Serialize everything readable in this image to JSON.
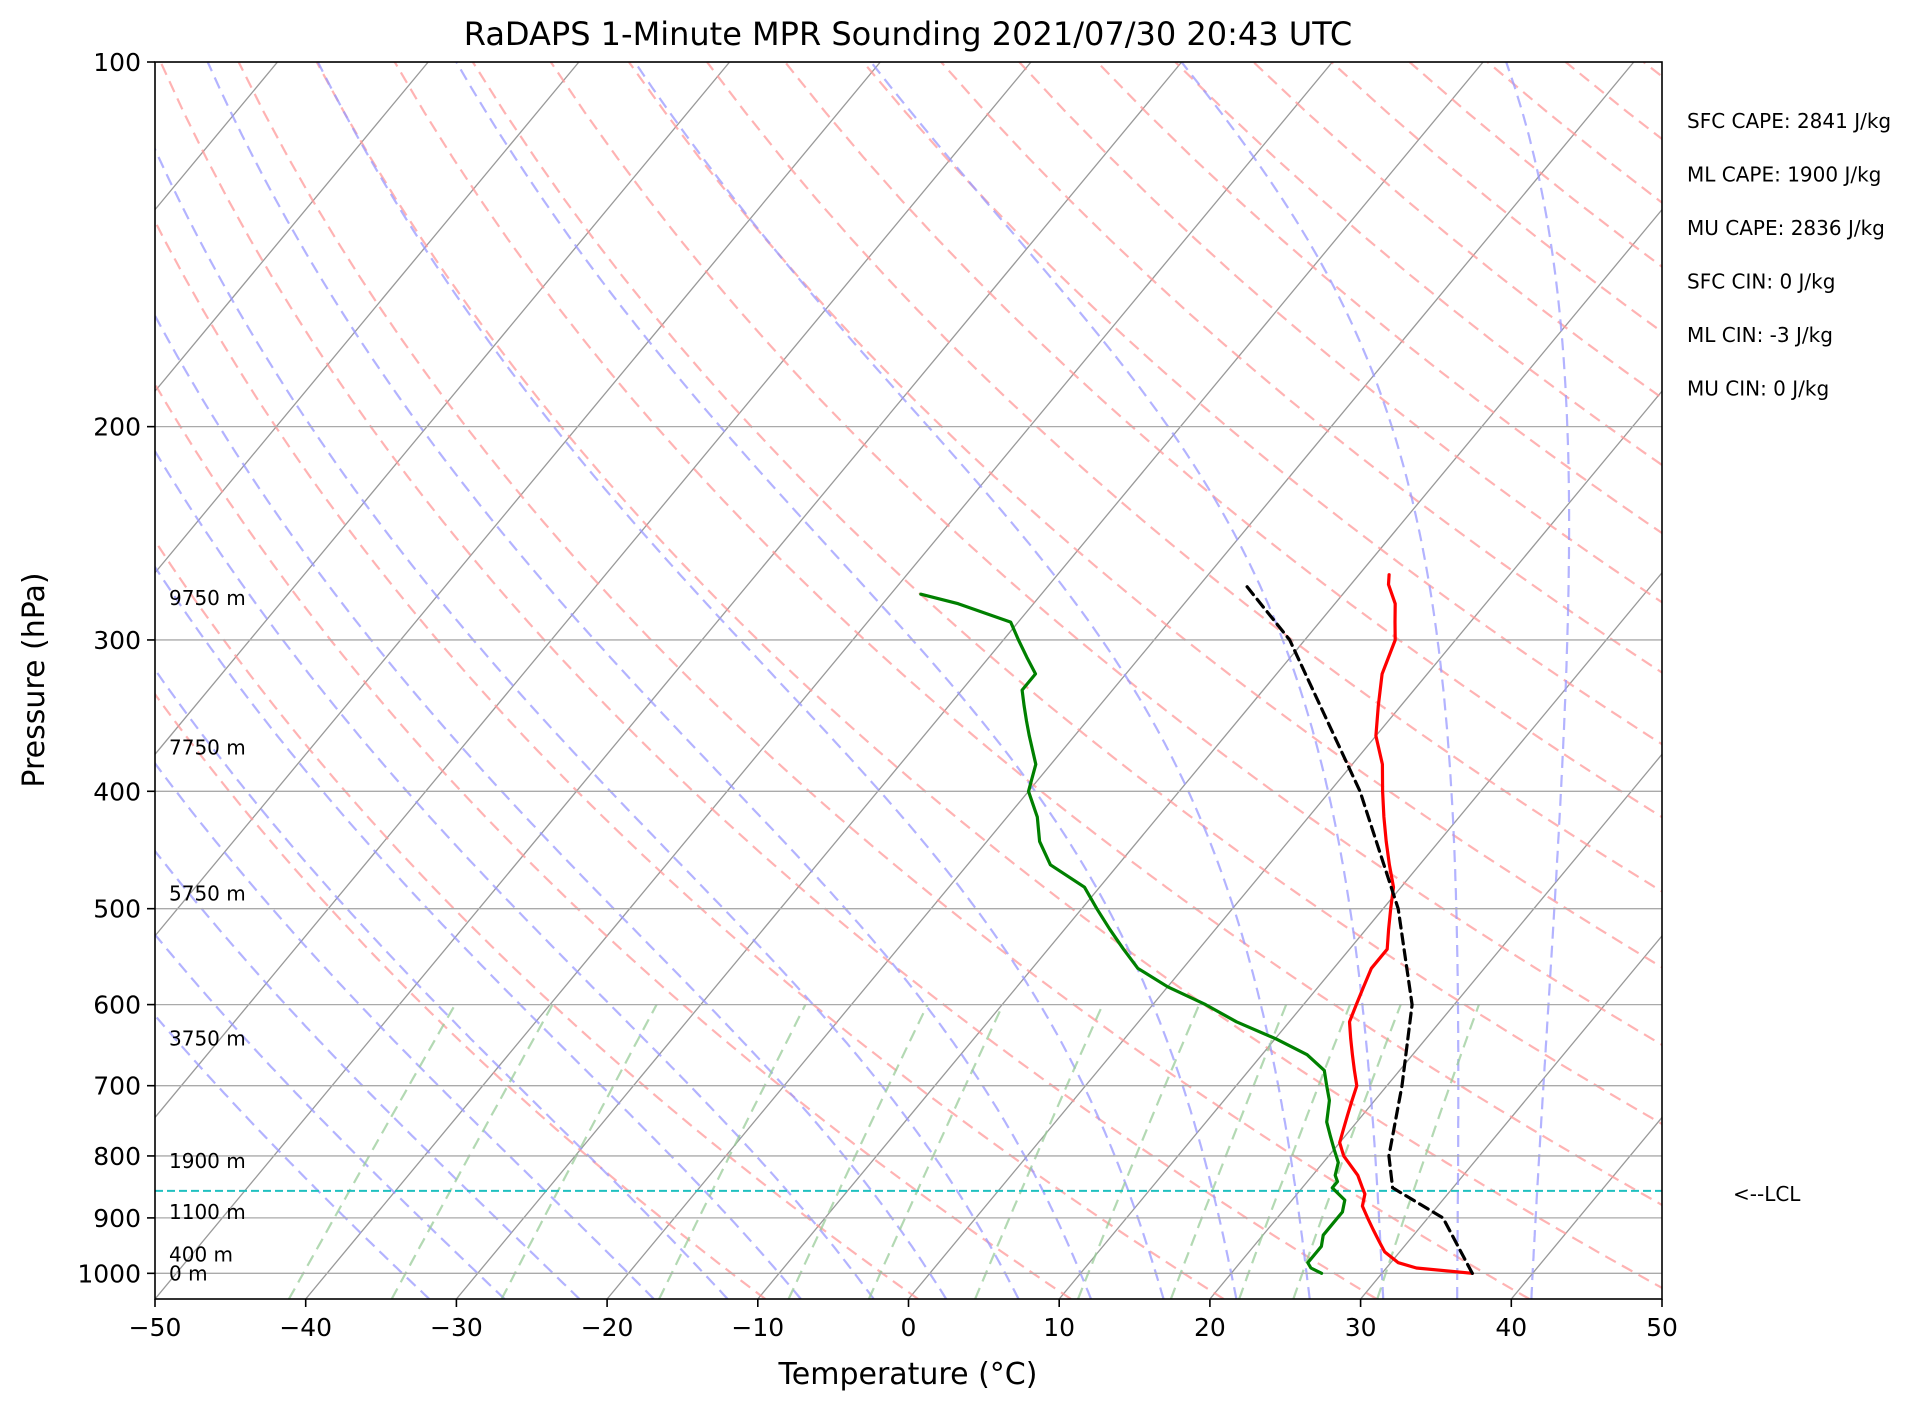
{
  "chart_data": {
    "type": "skew-t",
    "title": "RaDAPS 1-Minute MPR Sounding 2021/07/30 20:43 UTC",
    "xlabel": "Temperature (°C)",
    "ylabel": "Pressure (hPa)",
    "xlim": [
      -50,
      50
    ],
    "ylim": [
      1050,
      100
    ],
    "log_y": true,
    "skew": "isotherms slanted to the upper right",
    "x_ticks": [
      -50,
      -40,
      -30,
      -20,
      -10,
      0,
      10,
      20,
      30,
      40,
      50
    ],
    "x_tick_labels": [
      "−50",
      "−40",
      "−30",
      "−20",
      "−10",
      "0",
      "10",
      "20",
      "30",
      "40",
      "50"
    ],
    "y_ticks": [
      1000,
      900,
      800,
      700,
      600,
      500,
      400,
      300,
      200,
      100
    ],
    "y_tick_labels": [
      "1000",
      "900",
      "800",
      "700",
      "600",
      "500",
      "400",
      "300",
      "200",
      "100"
    ],
    "grid": true,
    "series": [
      {
        "role": "temperature",
        "color": "#ff0000",
        "points": [
          [
            1000,
            36
          ],
          [
            990,
            32
          ],
          [
            980,
            30.5
          ],
          [
            960,
            29
          ],
          [
            950,
            28.5
          ],
          [
            940,
            28
          ],
          [
            920,
            27
          ],
          [
            900,
            26
          ],
          [
            880,
            25
          ],
          [
            860,
            24.5
          ],
          [
            850,
            24
          ],
          [
            830,
            23
          ],
          [
            800,
            21
          ],
          [
            790,
            20.5
          ],
          [
            780,
            20
          ],
          [
            760,
            19.5
          ],
          [
            740,
            19
          ],
          [
            720,
            18.5
          ],
          [
            700,
            18
          ],
          [
            680,
            17
          ],
          [
            660,
            16
          ],
          [
            640,
            15
          ],
          [
            620,
            14
          ],
          [
            600,
            13.5
          ],
          [
            580,
            13
          ],
          [
            560,
            12.5
          ],
          [
            540,
            12.5
          ],
          [
            520,
            11.5
          ],
          [
            500,
            10.5
          ],
          [
            480,
            9.5
          ],
          [
            460,
            8
          ],
          [
            440,
            6.5
          ],
          [
            420,
            5
          ],
          [
            400,
            3.5
          ],
          [
            380,
            2
          ],
          [
            360,
            0
          ],
          [
            340,
            -1.5
          ],
          [
            320,
            -3
          ],
          [
            300,
            -4
          ],
          [
            290,
            -5
          ],
          [
            280,
            -6
          ],
          [
            270,
            -7.5
          ],
          [
            265,
            -8
          ]
        ]
      },
      {
        "role": "dewpoint",
        "color": "#008000",
        "points": [
          [
            1000,
            26
          ],
          [
            990,
            25
          ],
          [
            980,
            24.5
          ],
          [
            960,
            24.5
          ],
          [
            950,
            24.5
          ],
          [
            930,
            24
          ],
          [
            910,
            24
          ],
          [
            890,
            24
          ],
          [
            870,
            23.5
          ],
          [
            850,
            22
          ],
          [
            840,
            22
          ],
          [
            830,
            21.5
          ],
          [
            810,
            21
          ],
          [
            790,
            20
          ],
          [
            770,
            19
          ],
          [
            750,
            18
          ],
          [
            720,
            17
          ],
          [
            700,
            16
          ],
          [
            680,
            15
          ],
          [
            660,
            13
          ],
          [
            640,
            10
          ],
          [
            620,
            6.5
          ],
          [
            600,
            3.5
          ],
          [
            580,
            0
          ],
          [
            560,
            -3
          ],
          [
            540,
            -5
          ],
          [
            520,
            -7
          ],
          [
            500,
            -9
          ],
          [
            480,
            -11
          ],
          [
            460,
            -14.5
          ],
          [
            440,
            -16.5
          ],
          [
            420,
            -18
          ],
          [
            400,
            -20
          ],
          [
            380,
            -21
          ],
          [
            360,
            -23
          ],
          [
            350,
            -24
          ],
          [
            340,
            -25
          ],
          [
            330,
            -26
          ],
          [
            320,
            -26
          ],
          [
            310,
            -27.5
          ],
          [
            300,
            -29
          ],
          [
            290,
            -30.5
          ],
          [
            280,
            -35
          ],
          [
            275,
            -38
          ]
        ]
      },
      {
        "role": "parcel",
        "color": "#000000",
        "dashed": true,
        "points": [
          [
            1000,
            36
          ],
          [
            900,
            31
          ],
          [
            850,
            26
          ],
          [
            800,
            24
          ],
          [
            700,
            21
          ],
          [
            600,
            17.2
          ],
          [
            500,
            11
          ],
          [
            400,
            2
          ],
          [
            300,
            -11
          ],
          [
            270,
            -17
          ]
        ]
      }
    ],
    "background_lines": {
      "isotherms": {
        "color": "#999999",
        "from": -160,
        "to": 50,
        "step": 10
      },
      "dry_adiabats_K": {
        "color": "#ff9999",
        "values": [
          260,
          270,
          280,
          290,
          300,
          310,
          320,
          330,
          340,
          350,
          360,
          370,
          380,
          390,
          400,
          410,
          420,
          430,
          440,
          450,
          460,
          470,
          480,
          490,
          500,
          510,
          520
        ]
      },
      "moist_adiabats_C": {
        "color": "#9999ff",
        "values": [
          -35,
          -30,
          -25,
          -20,
          -15,
          -10,
          -5,
          0,
          5,
          10,
          15,
          20,
          25,
          30,
          35,
          40
        ]
      },
      "mixing_ratios_gkg": {
        "color": "#99cc99",
        "values": [
          0.1,
          0.2,
          0.4,
          1,
          2,
          3,
          5,
          8,
          12,
          16,
          20,
          28
        ],
        "top_pressure": 600
      }
    },
    "lcl": {
      "pressure": 855,
      "color": "#20c0c0",
      "label": "<--LCL"
    },
    "height_labels": [
      {
        "text": "9750 m",
        "pressure": 277
      },
      {
        "text": "7750 m",
        "pressure": 368
      },
      {
        "text": "5750 m",
        "pressure": 486
      },
      {
        "text": "3750 m",
        "pressure": 640
      },
      {
        "text": "1900 m",
        "pressure": 808
      },
      {
        "text": "1100 m",
        "pressure": 890
      },
      {
        "text": "400 m",
        "pressure": 965
      },
      {
        "text": "0 m",
        "pressure": 1000
      }
    ],
    "stats": [
      "SFC CAPE: 2841 J/kg",
      "ML CAPE: 1900 J/kg",
      "MU CAPE: 2836 J/kg",
      "SFC CIN: 0 J/kg",
      "ML CIN: -3 J/kg",
      "MU CIN: 0 J/kg"
    ]
  }
}
